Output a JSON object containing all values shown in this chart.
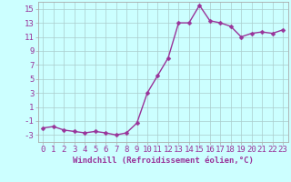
{
  "x": [
    0,
    1,
    2,
    3,
    4,
    5,
    6,
    7,
    8,
    9,
    10,
    11,
    12,
    13,
    14,
    15,
    16,
    17,
    18,
    19,
    20,
    21,
    22,
    23
  ],
  "y": [
    -2.0,
    -1.8,
    -2.3,
    -2.5,
    -2.7,
    -2.5,
    -2.7,
    -3.0,
    -2.7,
    -1.3,
    3.0,
    5.5,
    8.0,
    13.0,
    13.0,
    15.5,
    13.3,
    13.0,
    12.5,
    11.0,
    11.5,
    11.7,
    11.5,
    12.0
  ],
  "xlabel": "Windchill (Refroidissement éolien,°C)",
  "line_color": "#993399",
  "marker_color": "#993399",
  "bg_color": "#ccffff",
  "grid_color": "#aacccc",
  "tick_color": "#993399",
  "ylim": [
    -4,
    16
  ],
  "xlim": [
    -0.5,
    23.5
  ],
  "yticks": [
    -3,
    -1,
    1,
    3,
    5,
    7,
    9,
    11,
    13,
    15
  ],
  "xticks": [
    0,
    1,
    2,
    3,
    4,
    5,
    6,
    7,
    8,
    9,
    10,
    11,
    12,
    13,
    14,
    15,
    16,
    17,
    18,
    19,
    20,
    21,
    22,
    23
  ],
  "xlabel_fontsize": 6.5,
  "tick_fontsize": 6.5,
  "linewidth": 1.0,
  "markersize": 2.5
}
